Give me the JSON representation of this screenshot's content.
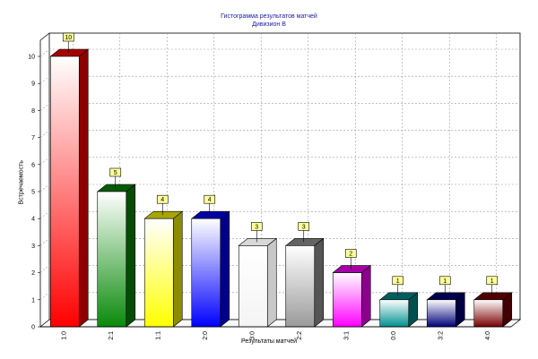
{
  "chart_data": {
    "type": "bar",
    "title": "Гистограмма результатов матчей",
    "subtitle": "Дивизион В",
    "xlabel": "Результаты матчей",
    "ylabel": "Встречаемость",
    "categories": [
      "1:0",
      "2:1",
      "1:1",
      "2:0",
      "3:0",
      "2:2",
      "3:1",
      "0:0",
      "3:2",
      "4:0"
    ],
    "values": [
      10,
      5,
      4,
      4,
      3,
      3,
      2,
      1,
      1,
      1
    ],
    "colors": [
      "#ff0000",
      "#0a8a0a",
      "#ffff00",
      "#0000ff",
      "#ffffff",
      "#9a9a9a",
      "#ff00ff",
      "#009090",
      "#00007a",
      "#7a0000"
    ],
    "ylim": [
      0,
      10
    ],
    "yticks": [
      0,
      1,
      2,
      3,
      4,
      5,
      6,
      7,
      8,
      9,
      10
    ],
    "grid": true,
    "data_labels": true
  }
}
